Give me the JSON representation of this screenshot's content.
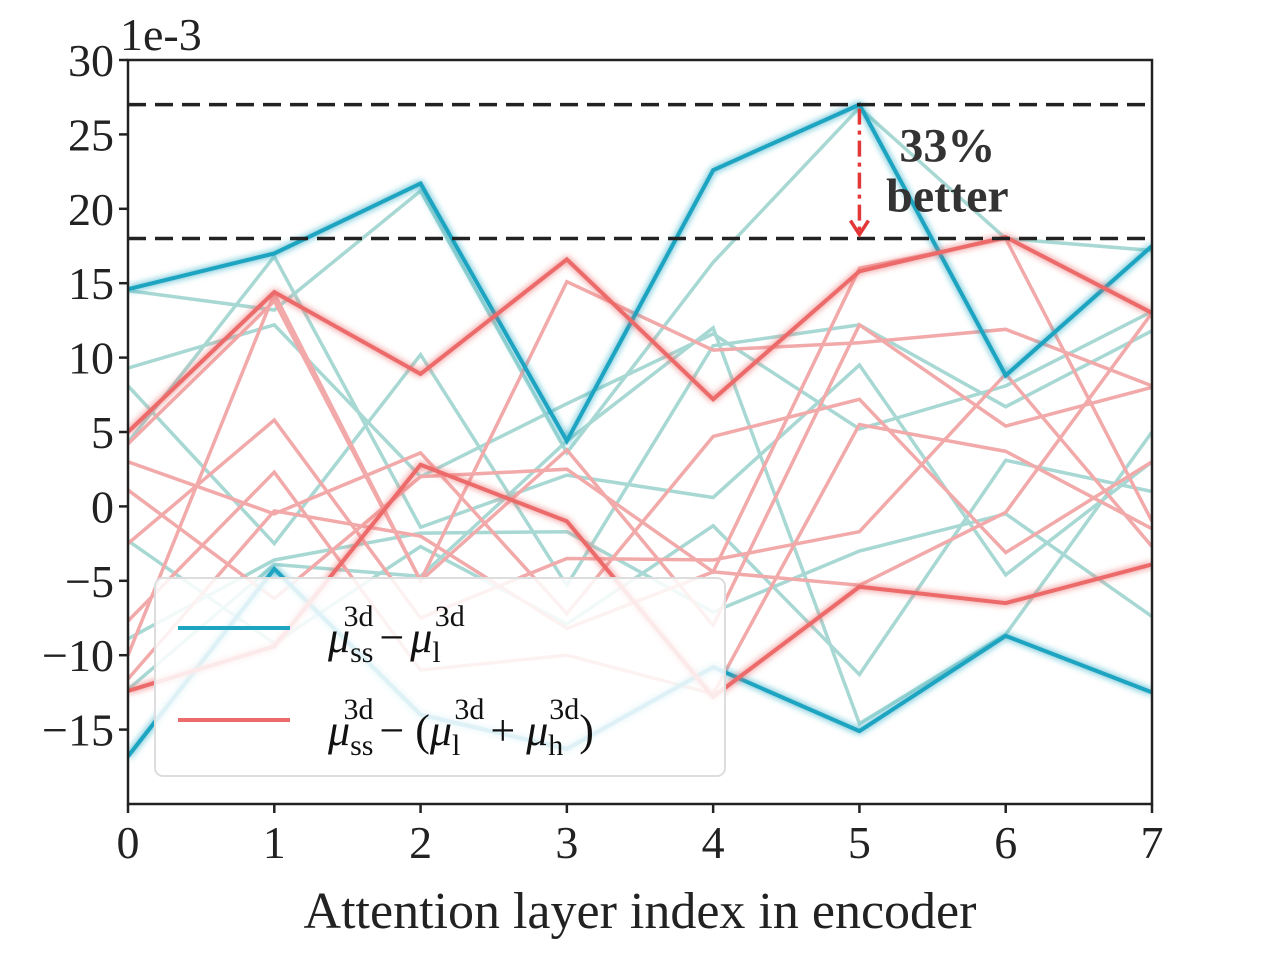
{
  "chart_data": {
    "type": "line",
    "xlabel": "Attention layer index in encoder",
    "ylabel": "",
    "y_exponent_label": "1e-3",
    "x": [
      0,
      1,
      2,
      3,
      4,
      5,
      6,
      7
    ],
    "xticks": [
      "0",
      "1",
      "2",
      "3",
      "4",
      "5",
      "6",
      "7"
    ],
    "yticks": [
      "30",
      "25",
      "20",
      "15",
      "10",
      "5",
      "0",
      "−5",
      "−10",
      "−15"
    ],
    "ytick_values": [
      30,
      25,
      20,
      15,
      10,
      5,
      0,
      -5,
      -10,
      -15
    ],
    "xlim": [
      0,
      7
    ],
    "ylim": [
      -20,
      30
    ],
    "grid": false,
    "legend_placement": "lower-left",
    "colors": {
      "teal": "#1da4c1",
      "teal_light": "#a8d8d3",
      "red": "#ec6b6b",
      "red_light": "#f2a9a9",
      "arrow": "#e33636",
      "hline": "#222222"
    },
    "legend": [
      {
        "key": "teal",
        "base": "μ",
        "sub1": "ss",
        "sup1": "3d",
        "rest": "− μ",
        "sub2": "l",
        "sup2": "3d"
      },
      {
        "key": "red",
        "text": "μss3d − (μl3d + μh3d)"
      }
    ],
    "reference_lines": [
      {
        "y": 27,
        "style": "dashed"
      },
      {
        "y": 18,
        "style": "dashed"
      }
    ],
    "annotation": {
      "lines": [
        "33%",
        "better"
      ],
      "arrow_from": 27,
      "arrow_to": 18,
      "x": 5
    },
    "series": [
      {
        "group": "teal",
        "emphasis": true,
        "values": [
          14.6,
          17.0,
          21.7,
          4.4,
          22.6,
          27.0,
          8.8,
          17.5
        ]
      },
      {
        "group": "teal",
        "emphasis": true,
        "values": [
          -16.8,
          -4.2,
          -14.0,
          -16.3,
          -10.8,
          -15.1,
          -8.7,
          -12.5
        ]
      },
      {
        "group": "teal",
        "emphasis": false,
        "values": [
          14.5,
          13.2,
          21.2,
          3.6,
          16.4,
          26.8,
          18.0,
          17.2
        ]
      },
      {
        "group": "teal",
        "emphasis": false,
        "values": [
          9.3,
          12.2,
          2.0,
          6.9,
          11.6,
          5.2,
          8.1,
          13.1
        ]
      },
      {
        "group": "teal",
        "emphasis": false,
        "values": [
          8.1,
          -2.5,
          10.2,
          -5.3,
          10.8,
          12.2,
          6.7,
          11.8
        ]
      },
      {
        "group": "teal",
        "emphasis": false,
        "values": [
          4.3,
          16.8,
          -1.4,
          2.1,
          0.6,
          9.5,
          -4.6,
          3.0
        ]
      },
      {
        "group": "teal",
        "emphasis": false,
        "values": [
          -2.3,
          -9.2,
          -2.7,
          -7.9,
          -1.3,
          -11.3,
          3.1,
          1.0
        ]
      },
      {
        "group": "teal",
        "emphasis": false,
        "values": [
          -8.9,
          -3.6,
          -1.8,
          -1.7,
          -7.1,
          -3.0,
          -0.5,
          -7.4
        ]
      },
      {
        "group": "teal",
        "emphasis": false,
        "values": [
          -12.3,
          -3.9,
          -4.7,
          4.4,
          12.0,
          -14.6,
          -8.6,
          5.0
        ]
      },
      {
        "group": "red",
        "emphasis": true,
        "values": [
          5.0,
          14.4,
          8.9,
          16.6,
          7.2,
          15.8,
          18.1,
          13.0
        ]
      },
      {
        "group": "red",
        "emphasis": true,
        "values": [
          -12.4,
          -9.4,
          2.8,
          -1.0,
          -12.8,
          -5.4,
          -6.5,
          -3.9
        ]
      },
      {
        "group": "red",
        "emphasis": false,
        "values": [
          4.2,
          13.8,
          -5.0,
          15.1,
          10.5,
          11.0,
          11.9,
          8.1
        ]
      },
      {
        "group": "red",
        "emphasis": false,
        "values": [
          3.0,
          -0.5,
          3.6,
          -7.2,
          4.7,
          7.2,
          -3.1,
          3.0
        ]
      },
      {
        "group": "red",
        "emphasis": false,
        "values": [
          1.1,
          -6.2,
          2.0,
          2.5,
          -4.4,
          16.0,
          18.0,
          -1.0
        ]
      },
      {
        "group": "red",
        "emphasis": false,
        "values": [
          -2.5,
          5.8,
          -7.5,
          -3.5,
          -3.6,
          -1.7,
          8.9,
          -2.7
        ]
      },
      {
        "group": "red",
        "emphasis": false,
        "values": [
          -7.7,
          2.3,
          -11.0,
          -10.0,
          -12.6,
          5.5,
          3.7,
          -1.5
        ]
      },
      {
        "group": "red",
        "emphasis": false,
        "values": [
          -10.0,
          14.3,
          -5.0,
          3.8,
          -8.0,
          12.2,
          5.4,
          8.0
        ]
      },
      {
        "group": "red",
        "emphasis": false,
        "values": [
          -11.6,
          -0.3,
          -2.0,
          -8.2,
          -4.4,
          -5.3,
          -0.4,
          13.0
        ]
      }
    ]
  }
}
